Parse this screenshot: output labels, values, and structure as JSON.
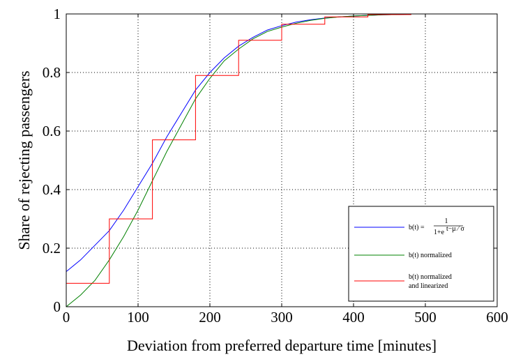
{
  "chart_data": {
    "type": "line",
    "xlabel": "Deviation from preferred departure time [minutes]",
    "ylabel": "Share of rejecting passengers",
    "xlim": [
      0,
      600
    ],
    "ylim": [
      0,
      1
    ],
    "xticks": [
      "0",
      "100",
      "200",
      "300",
      "400",
      "500",
      "600"
    ],
    "yticks": [
      "0",
      "0.2",
      "0.4",
      "0.6",
      "0.8",
      "1"
    ],
    "grid": true,
    "legend_position": "lower-right",
    "series": [
      {
        "name": "b(t) = 1 / (1+e^(…))",
        "color": "#0000ff",
        "x": [
          0,
          20,
          40,
          60,
          80,
          100,
          120,
          140,
          160,
          180,
          200,
          220,
          240,
          260,
          280,
          300,
          320,
          340,
          360,
          380,
          400,
          420,
          440,
          460,
          480
        ],
        "y": [
          0.12,
          0.16,
          0.21,
          0.26,
          0.33,
          0.41,
          0.49,
          0.58,
          0.66,
          0.74,
          0.8,
          0.85,
          0.89,
          0.92,
          0.945,
          0.96,
          0.972,
          0.98,
          0.986,
          0.99,
          0.993,
          0.995,
          0.997,
          0.998,
          0.999
        ]
      },
      {
        "name": "b(t) normalized",
        "color": "#008000",
        "x": [
          0,
          20,
          40,
          60,
          80,
          100,
          120,
          140,
          160,
          180,
          200,
          220,
          240,
          260,
          280,
          300,
          320,
          340,
          360,
          380,
          400,
          420,
          440,
          460,
          480
        ],
        "y": [
          0.0,
          0.04,
          0.09,
          0.16,
          0.24,
          0.33,
          0.43,
          0.53,
          0.62,
          0.71,
          0.78,
          0.84,
          0.88,
          0.915,
          0.94,
          0.955,
          0.968,
          0.978,
          0.985,
          0.99,
          0.993,
          0.995,
          0.997,
          0.998,
          0.999
        ]
      },
      {
        "name": "b(t) normalized and linearized",
        "color": "#ff0000",
        "step": true,
        "x": [
          0,
          60,
          120,
          180,
          240,
          300,
          360,
          420,
          480
        ],
        "y": [
          0.08,
          0.3,
          0.57,
          0.79,
          0.91,
          0.965,
          0.99,
          0.998,
          1.0
        ]
      }
    ]
  },
  "legend": {
    "items": [
      {
        "label_lines": [
          "b(t) =                 "
        ],
        "formula": {
          "numerator": "1",
          "denominator": "1+e",
          "exponent": "t−μ ⁄ σ"
        }
      },
      {
        "label_lines": [
          "b(t) normalized"
        ]
      },
      {
        "label_lines": [
          "b(t) normalized",
          "and linearized"
        ]
      }
    ]
  }
}
